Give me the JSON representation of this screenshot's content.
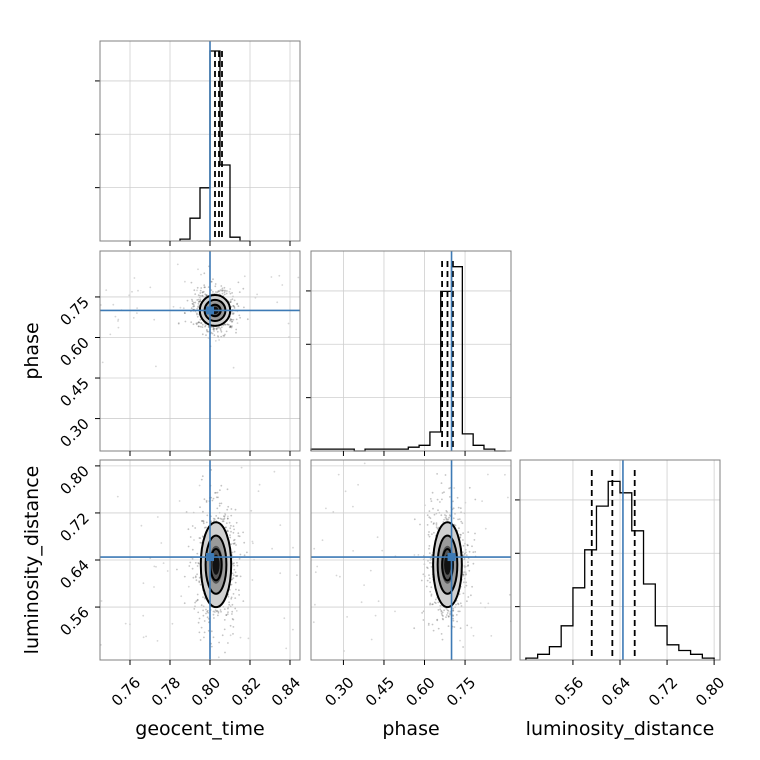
{
  "truth_color": "#3d7ab5",
  "chart_data": {
    "type": "corner",
    "parameters": [
      "geocent_time",
      "phase",
      "luminosity_distance"
    ],
    "truths": {
      "geocent_time": 0.8,
      "phase": 0.7,
      "luminosity_distance": 0.645
    },
    "quantiles": {
      "geocent_time": [
        0.8025,
        0.8045,
        0.806
      ],
      "phase": [
        0.665,
        0.685,
        0.705
      ],
      "luminosity_distance": [
        0.592,
        0.627,
        0.665
      ]
    },
    "ticks": {
      "geocent_time": [
        "0.76",
        "0.78",
        "0.80",
        "0.82",
        "0.84"
      ],
      "phase": [
        "0.30",
        "0.45",
        "0.60",
        "0.75"
      ],
      "luminosity_distance": [
        "0.56",
        "0.64",
        "0.72",
        "0.80"
      ]
    },
    "ranges": {
      "geocent_time": [
        0.745,
        0.845
      ],
      "phase": [
        0.18,
        0.92
      ],
      "luminosity_distance": [
        0.47,
        0.81
      ]
    },
    "hist_geocent_time": {
      "edges": [
        0.785,
        0.79,
        0.795,
        0.8,
        0.805,
        0.81,
        0.815,
        0.82
      ],
      "counts": [
        0.01,
        0.12,
        0.28,
        1.0,
        0.4,
        0.02,
        0.0
      ]
    },
    "hist_phase": {
      "edges": [
        0.18,
        0.22,
        0.26,
        0.3,
        0.34,
        0.38,
        0.42,
        0.46,
        0.5,
        0.54,
        0.58,
        0.62,
        0.66,
        0.7,
        0.74,
        0.78,
        0.82,
        0.86,
        0.9
      ],
      "counts": [
        0.01,
        0.01,
        0.01,
        0.01,
        0.0,
        0.01,
        0.01,
        0.01,
        0.01,
        0.02,
        0.03,
        0.1,
        0.84,
        0.97,
        0.09,
        0.03,
        0.01,
        0.0
      ]
    },
    "hist_luminosity_distance": {
      "edges": [
        0.48,
        0.5,
        0.52,
        0.54,
        0.56,
        0.58,
        0.6,
        0.62,
        0.64,
        0.66,
        0.68,
        0.7,
        0.72,
        0.74,
        0.76,
        0.78,
        0.8
      ],
      "counts": [
        0.01,
        0.03,
        0.07,
        0.18,
        0.38,
        0.58,
        0.81,
        0.94,
        0.88,
        0.68,
        0.4,
        0.18,
        0.08,
        0.05,
        0.03,
        0.01
      ]
    },
    "joint_geocent_time_phase": {
      "center": [
        0.8025,
        0.7
      ],
      "spread": [
        0.004,
        0.03
      ]
    },
    "joint_geocent_time_luminosity_distance": {
      "center": [
        0.803,
        0.632
      ],
      "spread": [
        0.004,
        0.038
      ]
    },
    "joint_phase_luminosity_distance": {
      "center": [
        0.685,
        0.632
      ],
      "spread": [
        0.028,
        0.038
      ]
    },
    "grid": true
  }
}
